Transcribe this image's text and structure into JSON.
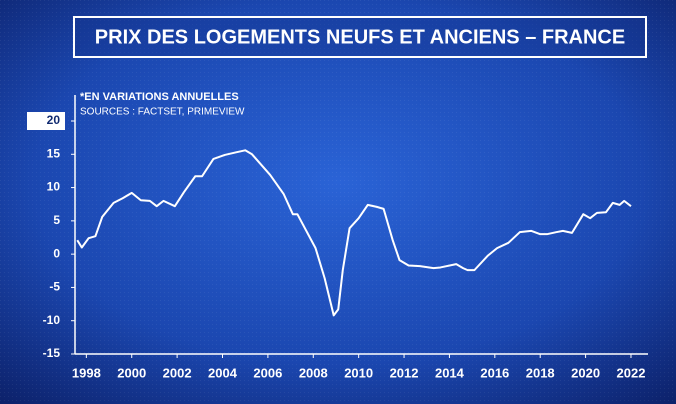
{
  "chart_data": {
    "type": "line",
    "title": "PRIX DES LOGEMENTS NEUFS ET ANCIENS – FRANCE",
    "subtitle": "*EN VARIATIONS ANNUELLES",
    "source": "SOURCES : FACTSET, PRIMEVIEW",
    "color": "#ffffff",
    "x": [
      1997.6,
      1997.8,
      1998.1,
      1998.4,
      1998.7,
      1999.2,
      1999.6,
      2000.0,
      2000.4,
      2000.8,
      2001.1,
      2001.4,
      2001.9,
      2002.3,
      2002.8,
      2003.1,
      2003.6,
      2004.1,
      2004.6,
      2005.0,
      2005.3,
      2006.1,
      2006.7,
      2007.1,
      2007.3,
      2008.1,
      2008.5,
      2008.9,
      2009.1,
      2009.3,
      2009.6,
      2010.0,
      2010.4,
      2010.8,
      2011.1,
      2011.5,
      2011.8,
      2012.2,
      2012.7,
      2013.3,
      2013.6,
      2014.3,
      2014.6,
      2014.8,
      2015.1,
      2015.7,
      2016.1,
      2016.6,
      2017.1,
      2017.6,
      2018.0,
      2018.3,
      2018.7,
      2019.0,
      2019.4,
      2019.9,
      2020.2,
      2020.5,
      2020.9,
      2021.2,
      2021.5,
      2021.7,
      2022.0
    ],
    "values": [
      2.1,
      1.0,
      2.4,
      2.7,
      5.6,
      7.7,
      8.4,
      9.2,
      8.1,
      8.0,
      7.2,
      8.0,
      7.2,
      9.3,
      11.7,
      11.7,
      14.3,
      14.9,
      15.3,
      15.6,
      15.0,
      11.9,
      9.0,
      6.0,
      6.0,
      0.9,
      -3.6,
      -9.2,
      -8.3,
      -2.4,
      3.9,
      5.4,
      7.4,
      7.1,
      6.8,
      2.1,
      -0.9,
      -1.7,
      -1.8,
      -2.1,
      -2.0,
      -1.5,
      -2.1,
      -2.4,
      -2.4,
      -0.2,
      0.9,
      1.7,
      3.3,
      3.5,
      3.0,
      3.0,
      3.3,
      3.5,
      3.2,
      6.0,
      5.4,
      6.2,
      6.3,
      7.7,
      7.4,
      8.0,
      7.2
    ],
    "xlim": [
      1997.5,
      2022.75
    ],
    "xticks": [
      1998,
      2000,
      2002,
      2004,
      2006,
      2008,
      2010,
      2012,
      2014,
      2016,
      2018,
      2020,
      2022
    ],
    "ylim": [
      -15,
      20
    ],
    "yticks": [
      -15,
      -10,
      -5,
      0,
      5,
      10,
      15,
      20
    ]
  }
}
